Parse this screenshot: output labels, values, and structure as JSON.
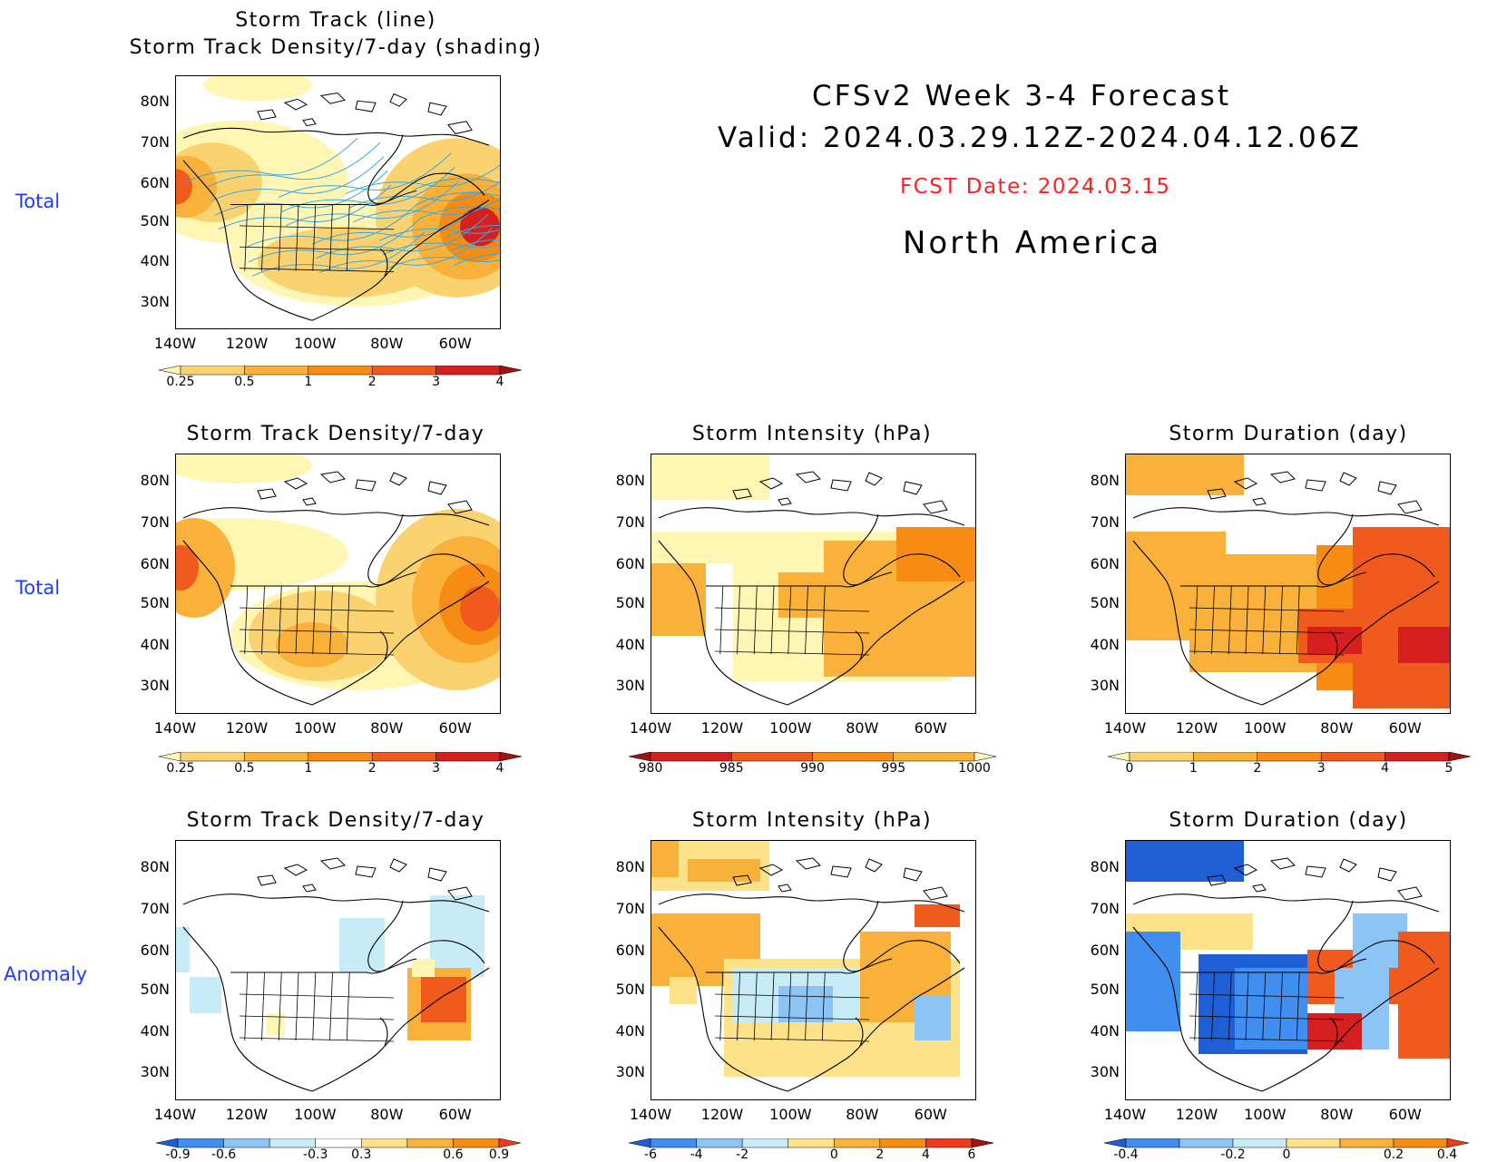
{
  "header": {
    "line1": "CFSv2 Week 3-4 Forecast",
    "line2": "Valid: 2024.03.29.12Z-2024.04.12.06Z",
    "fcst": "FCST Date: 2024.03.15",
    "region": "North America"
  },
  "row_labels": [
    "Total",
    "Total",
    "Anomaly"
  ],
  "axes": {
    "lat_labels": [
      "80N",
      "70N",
      "60N",
      "50N",
      "40N",
      "30N"
    ],
    "lon_labels": [
      "140W",
      "120W",
      "100W",
      "80W",
      "60W"
    ]
  },
  "panels": {
    "p1": {
      "title1": "Storm Track (line)",
      "title2": "Storm Track Density/7-day (shading)"
    },
    "p2": {
      "title": "Storm Track Density/7-day"
    },
    "p3": {
      "title": "Storm Intensity (hPa)"
    },
    "p4": {
      "title": "Storm Duration (day)"
    },
    "p5": {
      "title": "Storm Track Density/7-day"
    },
    "p6": {
      "title": "Storm Intensity (hPa)"
    },
    "p7": {
      "title": "Storm Duration (day)"
    }
  },
  "colorbars": {
    "density": {
      "labels": [
        "0.25",
        "0.5",
        "1",
        "2",
        "3",
        "4"
      ],
      "colors": [
        "#fff6b3",
        "#fbd270",
        "#f9b13a",
        "#f68c14",
        "#f05a1c",
        "#d62020",
        "#a31212"
      ]
    },
    "intensity": {
      "labels": [
        "980",
        "985",
        "990",
        "995",
        "1000"
      ],
      "colors": [
        "#a31212",
        "#d62020",
        "#f05a1c",
        "#f68c14",
        "#f9b13a",
        "#fff6b3"
      ]
    },
    "duration": {
      "labels": [
        "0",
        "1",
        "2",
        "3",
        "4",
        "5"
      ],
      "colors": [
        "#fff6b3",
        "#fbd270",
        "#f9b13a",
        "#f68c14",
        "#f05a1c",
        "#d62020",
        "#a31212"
      ]
    },
    "density_anom": {
      "labels": [
        "-0.9",
        "-0.6",
        "-0.3",
        "0.3",
        "0.6",
        "0.9"
      ],
      "colors": [
        "#1e5fd6",
        "#3f8ef0",
        "#8cc4f5",
        "#c8ecf7",
        "#ffffff",
        "#fde28a",
        "#f9b13a",
        "#f68c14",
        "#f03a1c"
      ]
    },
    "intensity_anom": {
      "labels": [
        "-6",
        "-4",
        "-2",
        "0",
        "2",
        "4",
        "6"
      ],
      "colors": [
        "#1e5fd6",
        "#3f8ef0",
        "#8cc4f5",
        "#c8ecf7",
        "#fde28a",
        "#f9b13a",
        "#f68c14",
        "#f03a1c",
        "#a31212"
      ]
    },
    "duration_anom": {
      "labels": [
        "-0.4",
        "-0.2",
        "0",
        "0.2",
        "0.4"
      ],
      "colors": [
        "#1e5fd6",
        "#3f8ef0",
        "#8cc4f5",
        "#c8ecf7",
        "#fde28a",
        "#f9b13a",
        "#f68c14",
        "#f03a1c"
      ]
    }
  }
}
